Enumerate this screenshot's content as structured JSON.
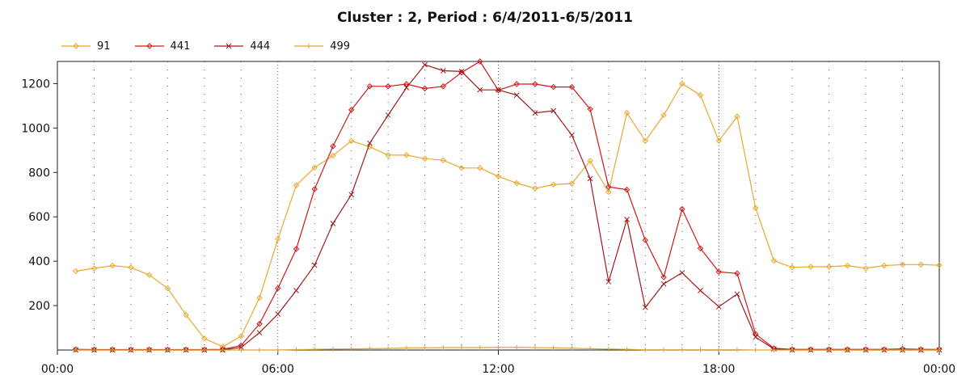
{
  "chart_data": {
    "type": "line",
    "title": "Cluster : 2, Period : 6/4/2011-6/5/2011",
    "xlabel": "",
    "ylabel": "",
    "x_ticks": [
      "00:00",
      "06:00",
      "12:00",
      "18:00",
      "00:00"
    ],
    "xlim": [
      0,
      24
    ],
    "ylim": [
      0,
      1300
    ],
    "y_ticks": [
      200,
      400,
      600,
      800,
      1000,
      1200
    ],
    "grid": true,
    "legend_position": "top-left",
    "x": [
      0.5,
      1.0,
      1.5,
      2.0,
      2.5,
      3.0,
      3.5,
      4.0,
      4.5,
      5.0,
      5.5,
      6.0,
      6.5,
      7.0,
      7.5,
      8.0,
      8.5,
      9.0,
      9.5,
      10.0,
      10.5,
      11.0,
      11.5,
      12.0,
      12.5,
      13.0,
      13.5,
      14.0,
      14.5,
      15.0,
      15.5,
      16.0,
      16.5,
      17.0,
      17.5,
      18.0,
      18.5,
      19.0,
      19.5,
      20.0,
      20.5,
      21.0,
      21.5,
      22.0,
      22.5,
      23.0,
      23.5,
      24.0
    ],
    "series": [
      {
        "name": "91",
        "color": "#e8a82c",
        "marker": "diamond",
        "values": [
          355,
          368,
          380,
          372,
          338,
          278,
          158,
          52,
          15,
          62,
          235,
          500,
          742,
          822,
          875,
          942,
          915,
          878,
          878,
          862,
          855,
          820,
          820,
          782,
          752,
          728,
          745,
          750,
          852,
          712,
          1068,
          942,
          1058,
          1200,
          1148,
          942,
          1052,
          640,
          402,
          372,
          375,
          375,
          380,
          368,
          380,
          385,
          385,
          382
        ]
      },
      {
        "name": "441",
        "color": "#d01818",
        "marker": "diamond",
        "values": [
          3,
          2,
          2,
          2,
          2,
          2,
          2,
          2,
          3,
          20,
          118,
          278,
          455,
          725,
          918,
          1082,
          1188,
          1188,
          1198,
          1178,
          1188,
          1250,
          1300,
          1170,
          1198,
          1198,
          1185,
          1185,
          1085,
          735,
          722,
          495,
          328,
          635,
          458,
          352,
          345,
          72,
          8,
          3,
          3,
          3,
          3,
          3,
          3,
          5,
          3,
          3
        ]
      },
      {
        "name": "444",
        "color": "#a01a1a",
        "marker": "cross",
        "values": [
          0,
          0,
          0,
          0,
          0,
          0,
          0,
          0,
          0,
          12,
          78,
          162,
          268,
          382,
          570,
          700,
          932,
          1058,
          1182,
          1285,
          1258,
          1255,
          1172,
          1172,
          1148,
          1068,
          1078,
          968,
          772,
          308,
          588,
          192,
          298,
          348,
          268,
          195,
          252,
          58,
          5,
          0,
          0,
          0,
          0,
          0,
          0,
          0,
          0,
          0
        ]
      },
      {
        "name": "499",
        "color": "#dca23a",
        "marker": "plus",
        "values": [
          0,
          0,
          0,
          0,
          0,
          0,
          0,
          0,
          0,
          0,
          0,
          0,
          2,
          3,
          4,
          5,
          6,
          7,
          9,
          10,
          11,
          11,
          11,
          12,
          12,
          11,
          10,
          8,
          6,
          4,
          3,
          1,
          1,
          1,
          1,
          1,
          1,
          0,
          0,
          0,
          0,
          0,
          0,
          0,
          0,
          0,
          0,
          0
        ]
      }
    ]
  }
}
